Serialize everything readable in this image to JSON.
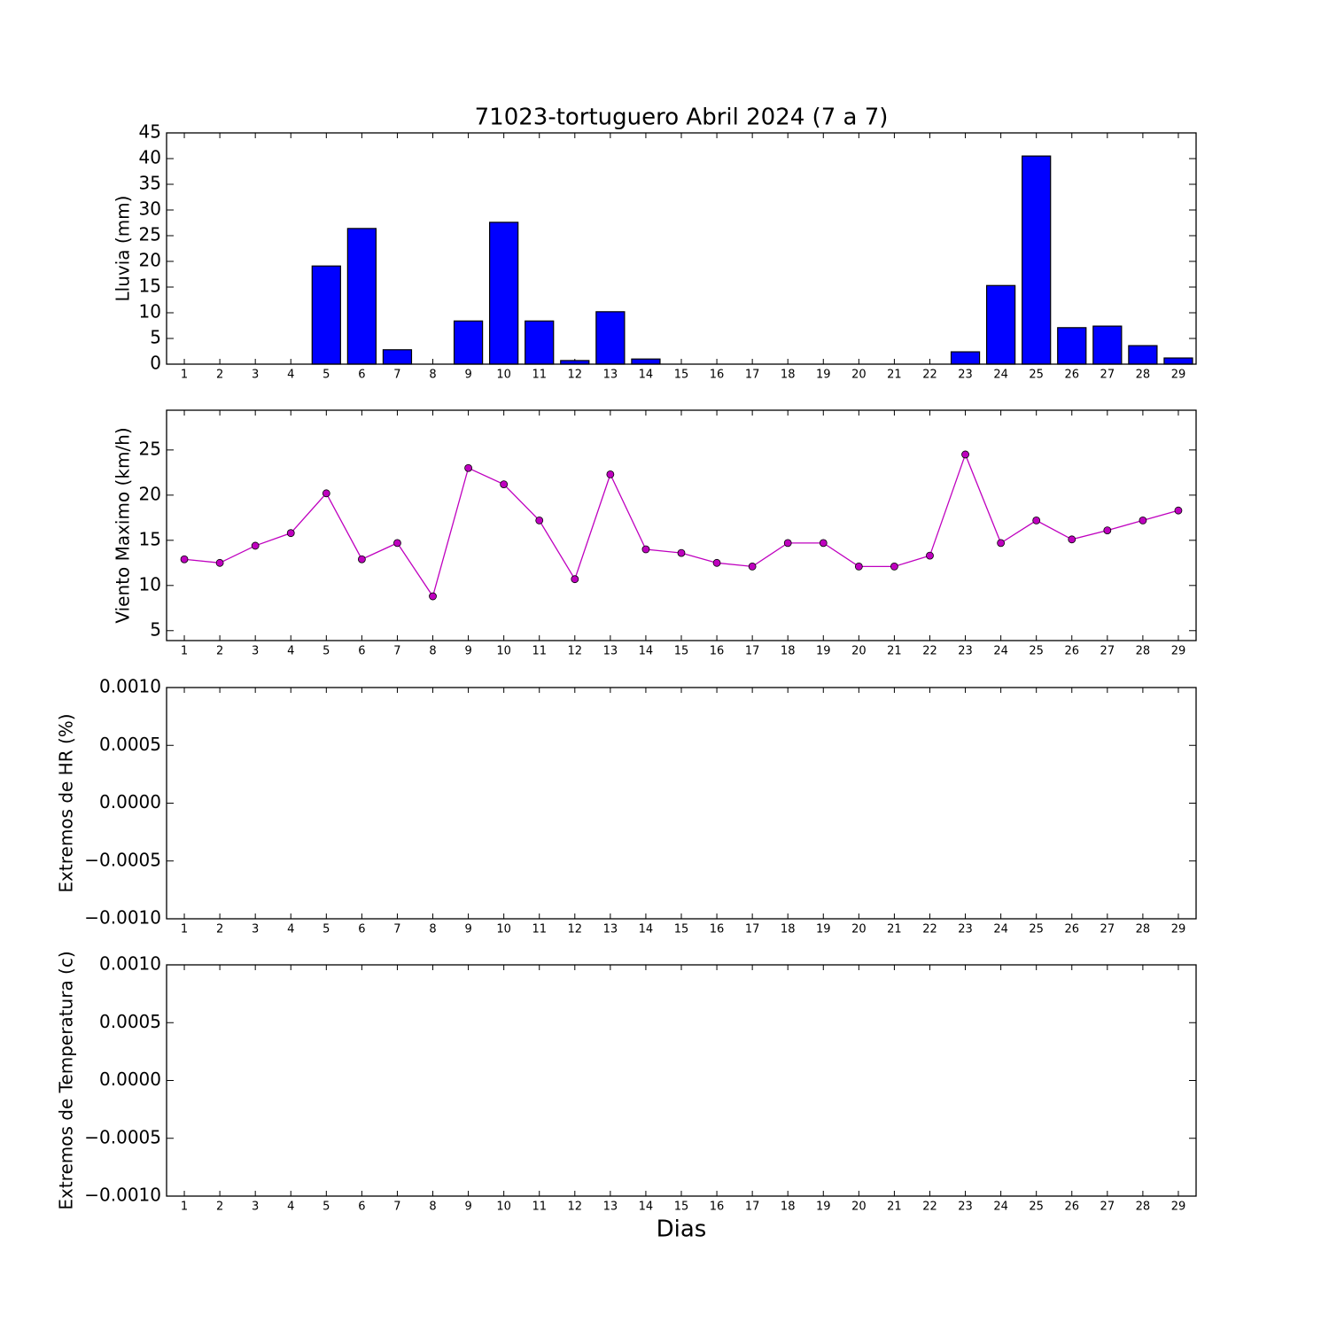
{
  "chart_data": [
    {
      "type": "bar",
      "title": "71023-tortuguero Abril 2024  (7 a 7)",
      "ylabel": "Lluvia (mm)",
      "categories": [
        1,
        2,
        3,
        4,
        5,
        6,
        7,
        8,
        9,
        10,
        11,
        12,
        13,
        14,
        15,
        16,
        17,
        18,
        19,
        20,
        21,
        22,
        23,
        24,
        25,
        26,
        27,
        28,
        29
      ],
      "values": [
        0,
        0,
        0,
        0,
        19.1,
        26.4,
        2.8,
        0,
        8.4,
        27.6,
        8.4,
        0.7,
        10.2,
        1.0,
        0,
        0,
        0,
        0,
        0,
        0,
        0,
        0,
        2.4,
        15.3,
        40.5,
        7.1,
        7.4,
        3.6,
        1.2
      ],
      "color": "#0000ff",
      "ylim": [
        0,
        45
      ],
      "yticks": [
        0,
        5,
        10,
        15,
        20,
        25,
        30,
        35,
        40,
        45
      ]
    },
    {
      "type": "line",
      "ylabel": "Viento Maximo (km/h)",
      "categories": [
        1,
        2,
        3,
        4,
        5,
        6,
        7,
        8,
        9,
        10,
        11,
        12,
        13,
        14,
        15,
        16,
        17,
        18,
        19,
        20,
        21,
        22,
        23,
        24,
        25,
        26,
        27,
        28,
        29
      ],
      "values": [
        12.9,
        12.5,
        14.4,
        15.8,
        20.2,
        12.9,
        14.7,
        8.8,
        23.0,
        21.2,
        17.2,
        10.7,
        22.3,
        14.0,
        13.6,
        12.5,
        12.1,
        14.7,
        14.7,
        12.1,
        12.1,
        13.3,
        24.5,
        14.7,
        17.2,
        15.1,
        16.1,
        17.2,
        18.3
      ],
      "color": "#bf00bf",
      "ylim": [
        3.9,
        29.4
      ],
      "yticks": [
        5,
        10,
        15,
        20,
        25
      ]
    },
    {
      "type": "line",
      "ylabel": "Extremos de HR (%)",
      "categories": [
        1,
        2,
        3,
        4,
        5,
        6,
        7,
        8,
        9,
        10,
        11,
        12,
        13,
        14,
        15,
        16,
        17,
        18,
        19,
        20,
        21,
        22,
        23,
        24,
        25,
        26,
        27,
        28,
        29
      ],
      "ylim": [
        -0.001,
        0.001
      ],
      "yticks": [
        {
          "value": -0.001,
          "label": "−0.0010"
        },
        {
          "value": -0.0005,
          "label": "−0.0005"
        },
        {
          "value": 0,
          "label": "0.0000"
        },
        {
          "value": 0.0005,
          "label": "0.0005"
        },
        {
          "value": 0.001,
          "label": "0.0010"
        }
      ]
    },
    {
      "type": "line",
      "ylabel": "Extremos de Temperatura (c)",
      "xlabel": "Dias",
      "categories": [
        1,
        2,
        3,
        4,
        5,
        6,
        7,
        8,
        9,
        10,
        11,
        12,
        13,
        14,
        15,
        16,
        17,
        18,
        19,
        20,
        21,
        22,
        23,
        24,
        25,
        26,
        27,
        28,
        29
      ],
      "ylim": [
        -0.001,
        0.001
      ],
      "yticks": [
        {
          "value": -0.001,
          "label": "−0.0010"
        },
        {
          "value": -0.0005,
          "label": "−0.0005"
        },
        {
          "value": 0,
          "label": "0.0000"
        },
        {
          "value": 0.0005,
          "label": "0.0005"
        },
        {
          "value": 0.001,
          "label": "0.0010"
        }
      ]
    }
  ]
}
